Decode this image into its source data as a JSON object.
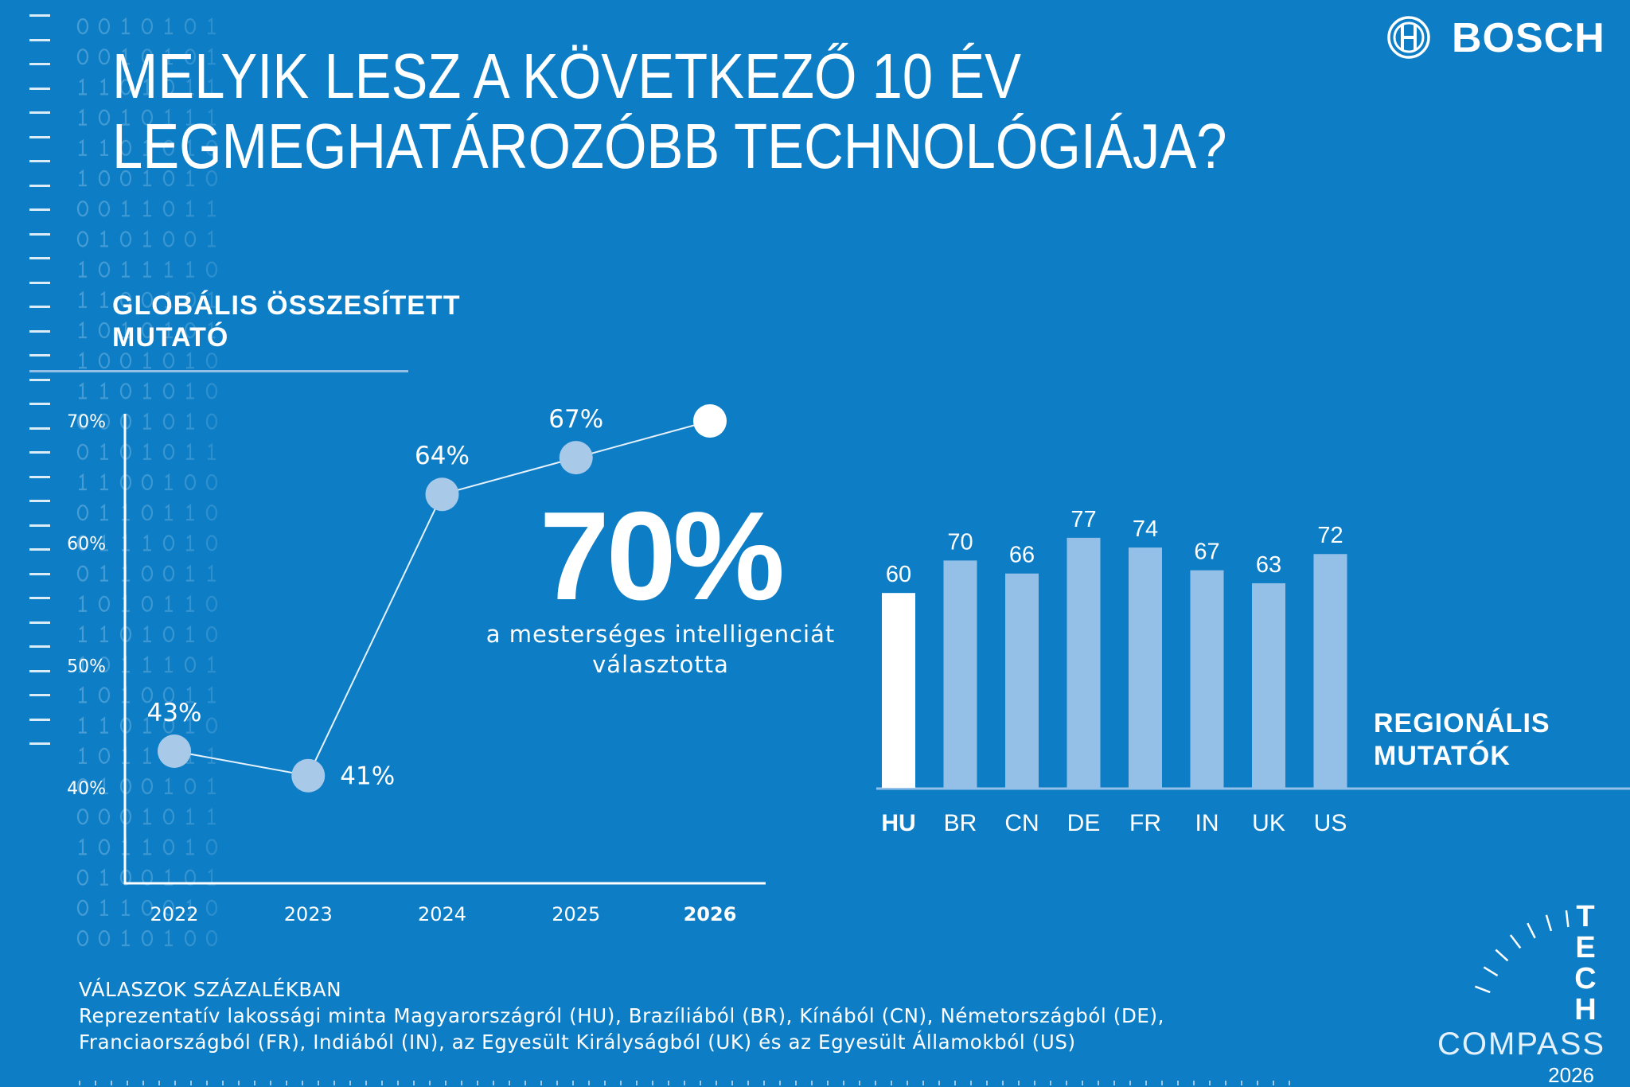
{
  "colors": {
    "background": "#0d7ec6",
    "highlight": "#ffffff",
    "accent_light": "#94c0e7",
    "marker": "#a9c9e9"
  },
  "brand": {
    "name": "BOSCH",
    "icon": "bosch-armature-logo-icon"
  },
  "title": {
    "line1": "MELYIK LESZ A KÖVETKEZŐ 10 ÉV",
    "line2": "LEGMEGHATÁROZÓBB TECHNOLÓGIÁJA?"
  },
  "global_section": {
    "line1": "GLOBÁLIS ÖSSZESÍTETT",
    "line2": "MUTATÓ"
  },
  "regional_section": {
    "line1": "REGIONÁLIS",
    "line2": "MUTATÓK"
  },
  "highlight": {
    "value": "70%",
    "line1": "a mesterséges intelligenciát",
    "line2": "választotta"
  },
  "footer": {
    "heading": "VÁLASZOK SZÁZALÉKBAN",
    "line1": "Reprezentatív lakossági minta Magyarországról (HU), Brazíliából (BR), Kínából (CN), Németországból (DE),",
    "line2": "Franciaországból (FR), Indiából (IN), az Egyesült Királyságból (UK) és az Egyesült Államokból (US)"
  },
  "tech_compass": {
    "letters": [
      "T",
      "E",
      "C",
      "H"
    ],
    "word": "COMPASS",
    "year": "2026"
  },
  "binary_rows": [
    "0010101",
    "0010101",
    "1101011",
    "1010111",
    "1101010",
    "1001010",
    "0011011",
    "0101001",
    "1011110",
    "1100101",
    "1010101",
    "1001010",
    "1101010",
    "0001010",
    "0101011",
    "1100100",
    "0110110",
    "0111010",
    "0110011",
    "1010110",
    "1101010",
    "1011101",
    "1010011",
    "1101010",
    "1011011",
    "0100101",
    "0001011",
    "1011010",
    "0100101",
    "0110010",
    "0010100"
  ],
  "chart_data": [
    {
      "type": "line",
      "categories": [
        "2022",
        "2023",
        "2024",
        "2025",
        "2026"
      ],
      "values": [
        43,
        41,
        64,
        67,
        70
      ],
      "data_labels": [
        "43%",
        "41%",
        "64%",
        "67%",
        ""
      ],
      "highlight_category": "2026",
      "y_ticks": [
        "40%",
        "50%",
        "60%",
        "70%"
      ],
      "ylim": [
        40,
        70
      ],
      "grid": false
    },
    {
      "type": "bar",
      "categories": [
        "HU",
        "BR",
        "CN",
        "DE",
        "FR",
        "IN",
        "UK",
        "US"
      ],
      "values": [
        60,
        70,
        66,
        77,
        74,
        67,
        63,
        72
      ],
      "data_labels": [
        "60",
        "70",
        "66",
        "77",
        "74",
        "67",
        "63",
        "72"
      ],
      "highlight_category": "HU",
      "ylim": [
        0,
        80
      ],
      "grid": false
    }
  ]
}
